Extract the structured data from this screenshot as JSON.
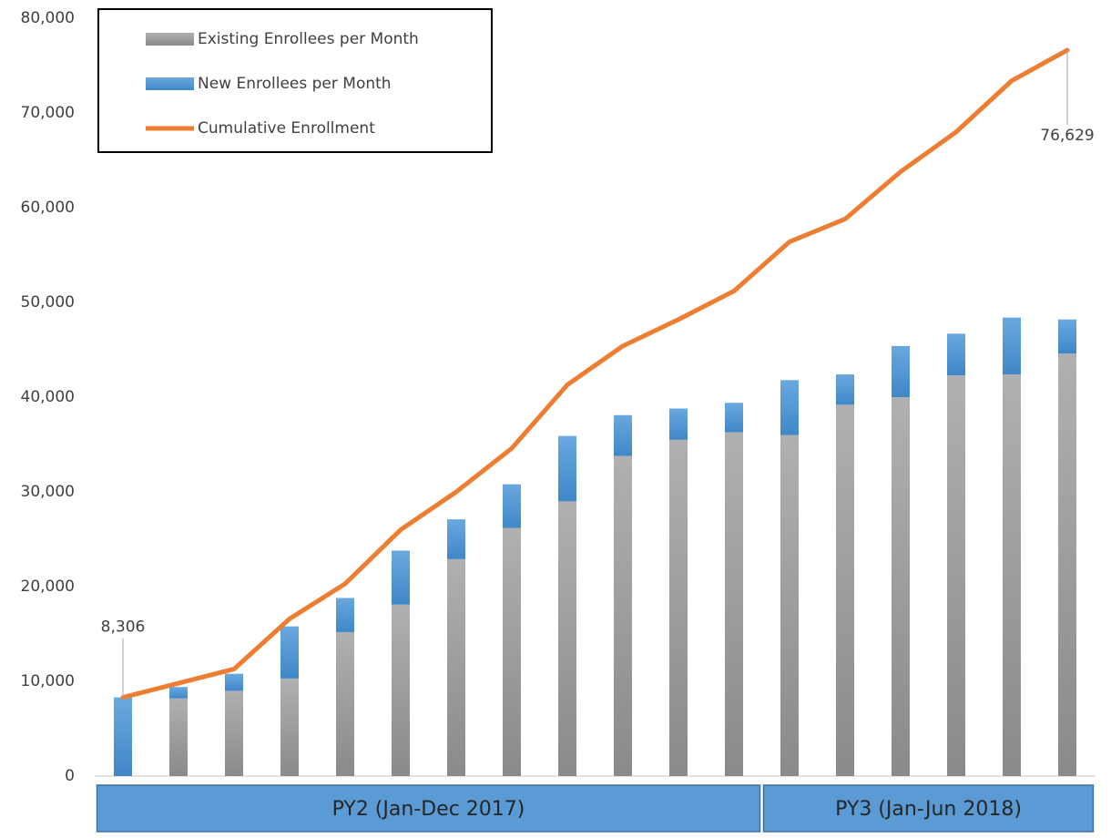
{
  "chart_data": {
    "type": "bar",
    "stacked": true,
    "categories": [
      null,
      null,
      null,
      null,
      null,
      null,
      null,
      null,
      null,
      null,
      null,
      null,
      null,
      null,
      null,
      null,
      null,
      null
    ],
    "x_groups": [
      {
        "label": "PY2 (Jan-Dec 2017)",
        "span": 12
      },
      {
        "label": "PY3 (Jan-Jun 2018)",
        "span": 6
      }
    ],
    "series": [
      {
        "name": "Existing Enrollees per Month",
        "color": "#a5a5a5",
        "values": [
          0,
          8200,
          9000,
          10300,
          15200,
          18100,
          22900,
          26200,
          29000,
          33800,
          35500,
          36300,
          36000,
          39200,
          40000,
          42300,
          42400,
          44600
        ]
      },
      {
        "name": "New Enrollees per Month",
        "color": "#5b9bd5",
        "values": [
          8306,
          1200,
          1800,
          5500,
          3600,
          5700,
          4200,
          4600,
          6900,
          4300,
          3300,
          3100,
          5800,
          3200,
          5400,
          4400,
          6000,
          3600
        ]
      },
      {
        "name": "Cumulative Enrollment",
        "color": "#ed7d31",
        "kind": "line",
        "values": [
          8306,
          9800,
          11300,
          16600,
          20300,
          26000,
          30000,
          34600,
          41300,
          45400,
          48200,
          51200,
          56400,
          58800,
          63800,
          68000,
          73400,
          76629
        ],
        "value_labels": [
          "8,306",
          null,
          null,
          null,
          null,
          null,
          null,
          null,
          null,
          null,
          null,
          null,
          null,
          null,
          null,
          null,
          null,
          "76,629"
        ]
      }
    ],
    "ylim": [
      0,
      80000
    ],
    "yticks": [
      0,
      {
        "value": 10000,
        "label": "10,000"
      },
      {
        "value": 20000,
        "label": "20,000"
      },
      {
        "value": 30000,
        "label": "30,000"
      },
      {
        "value": 40000,
        "label": "40,000"
      },
      {
        "value": 50000,
        "label": "50,000"
      },
      {
        "value": 60000,
        "label": "60,000"
      },
      {
        "value": 70000,
        "label": "70,000"
      },
      {
        "value": 80000,
        "label": "80,000"
      }
    ],
    "grid": false,
    "legend": "top-left"
  }
}
